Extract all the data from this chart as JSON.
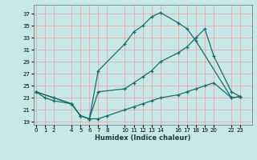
{
  "xlabel": "Humidex (Indice chaleur)",
  "bg_color": "#c8e8e8",
  "grid_color": "#e8a0a0",
  "line_color": "#1a6b6b",
  "ylim": [
    18.5,
    38.5
  ],
  "yticks": [
    19,
    21,
    23,
    25,
    27,
    29,
    31,
    33,
    35,
    37
  ],
  "xlim": [
    -0.3,
    24.3
  ],
  "xticks": [
    0,
    1,
    2,
    4,
    5,
    6,
    7,
    8,
    10,
    11,
    12,
    13,
    14,
    16,
    17,
    18,
    19,
    20,
    22,
    23
  ],
  "curve_top_x": [
    0,
    2,
    4,
    5,
    6,
    7,
    10,
    11,
    12,
    13,
    14,
    16,
    17,
    18,
    22,
    23
  ],
  "curve_top_y": [
    24,
    23,
    22,
    20,
    19.5,
    27.5,
    32,
    34,
    35,
    36.5,
    37.2,
    35.5,
    34.5,
    32.5,
    23,
    23.2
  ],
  "curve_mid_x": [
    0,
    2,
    4,
    5,
    6,
    7,
    10,
    11,
    12,
    13,
    14,
    16,
    17,
    18,
    19,
    20,
    22,
    23
  ],
  "curve_mid_y": [
    24,
    23,
    22,
    20,
    19.5,
    24,
    24.5,
    25.5,
    26.5,
    27.5,
    29,
    30.5,
    31.5,
    33,
    34.5,
    30,
    24,
    23.2
  ],
  "curve_bot_x": [
    0,
    1,
    2,
    4,
    5,
    6,
    7,
    8,
    10,
    11,
    12,
    13,
    14,
    16,
    17,
    18,
    19,
    20,
    22,
    23
  ],
  "curve_bot_y": [
    24,
    23,
    22.5,
    22,
    20,
    19.5,
    19.5,
    20,
    21,
    21.5,
    22,
    22.5,
    23,
    23.5,
    24,
    24.5,
    25,
    25.5,
    23,
    23.2
  ]
}
